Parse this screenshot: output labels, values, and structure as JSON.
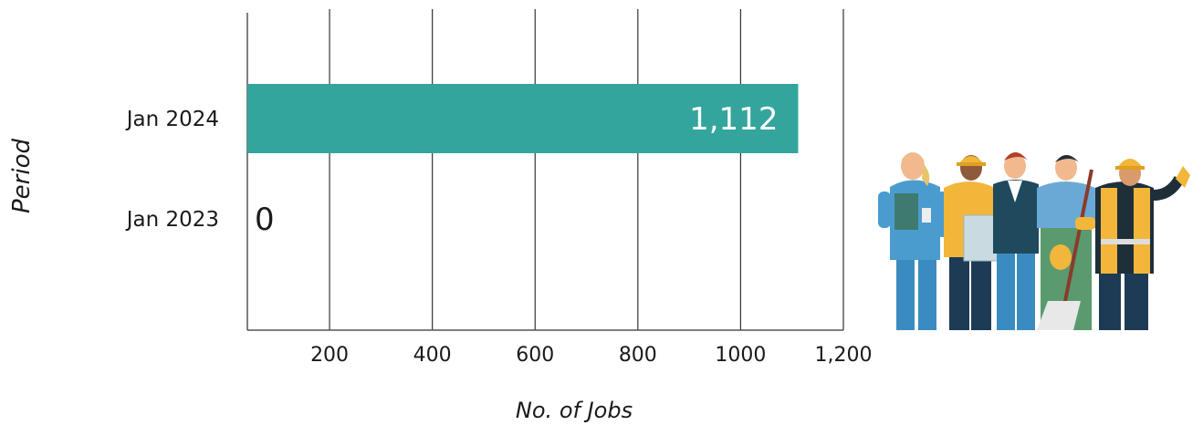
{
  "chart_data": {
    "type": "bar",
    "orientation": "horizontal",
    "categories": [
      "Jan 2024",
      "Jan  2023"
    ],
    "values": [
      1112,
      0
    ],
    "value_labels": [
      "1,112",
      "0"
    ],
    "xlabel": "No. of Jobs",
    "ylabel": "Period",
    "x_ticks": [
      200,
      400,
      600,
      800,
      1000,
      1200
    ],
    "x_tick_labels": [
      "200",
      "400",
      "600",
      "800",
      "1000",
      "1,200"
    ],
    "xlim": [
      40,
      1200
    ],
    "grid": "vertical",
    "bar_color": "#33a59c"
  },
  "illustration": {
    "icon": "workers-group-illustration"
  }
}
